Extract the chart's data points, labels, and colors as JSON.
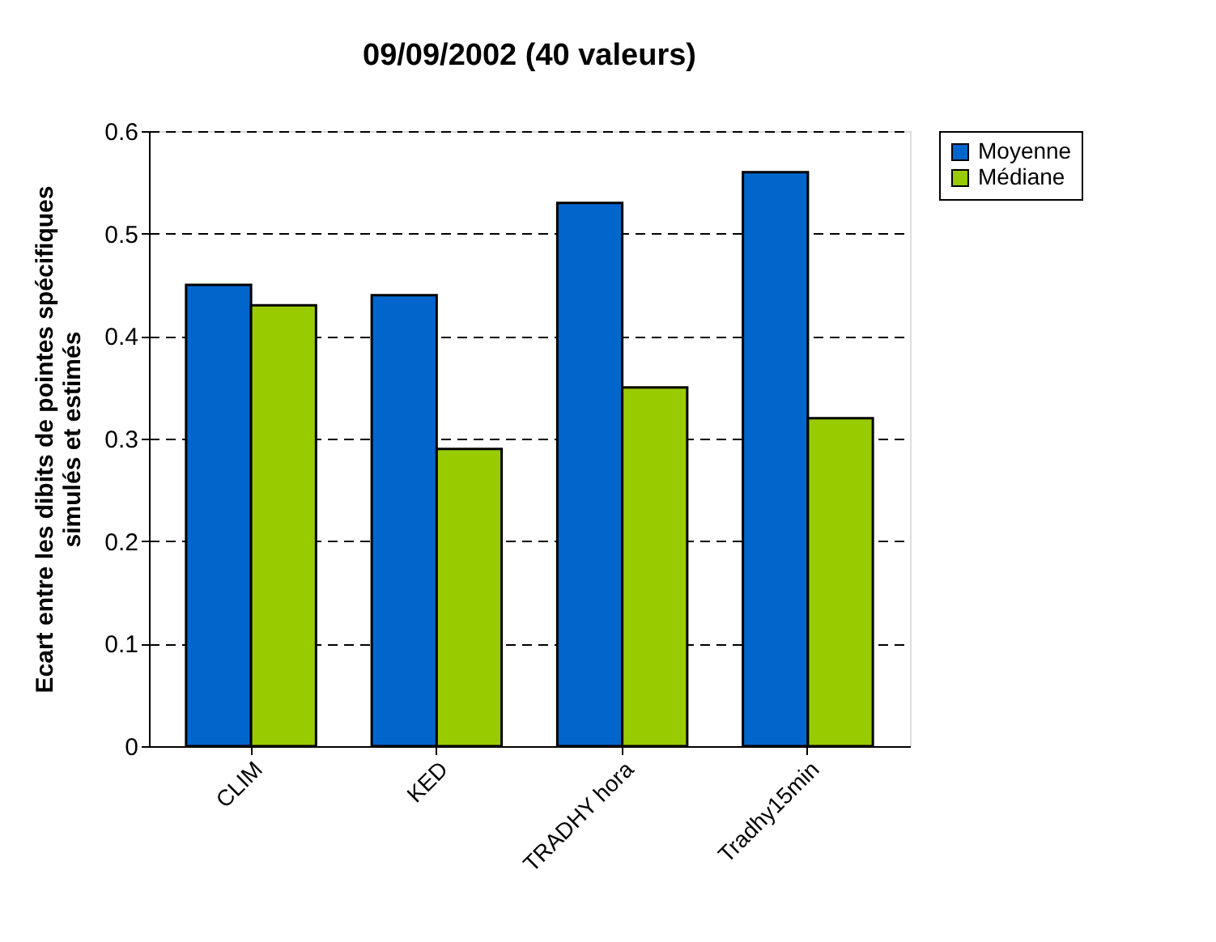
{
  "chart_data": {
    "type": "bar",
    "title": "09/09/2002 (40 valeurs)",
    "ylabel": "Ecart entre les dibits de pointes spécifiques\nsimulés et estimés",
    "categories": [
      "CLIM",
      "KED",
      "TRADHY hora",
      "Tradhy15min"
    ],
    "series": [
      {
        "name": "Moyenne",
        "color": "#0066cc",
        "values": [
          0.45,
          0.44,
          0.53,
          0.56
        ]
      },
      {
        "name": "Médiane",
        "color": "#99cc00",
        "values": [
          0.43,
          0.29,
          0.35,
          0.32
        ]
      }
    ],
    "ylim": [
      0,
      0.6
    ],
    "yticks": [
      0,
      0.1,
      0.2,
      0.3,
      0.4,
      0.5,
      0.6
    ],
    "grid": "y",
    "legend": "right"
  }
}
